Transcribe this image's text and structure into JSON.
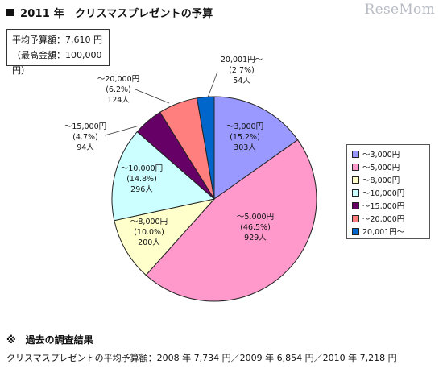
{
  "header": {
    "title": "2011 年　クリスマスプレゼントの予算",
    "logo_text": "ReseMom"
  },
  "summary": {
    "average": "平均予算額：7,610 円",
    "max": "（最高金額：100,000 円）"
  },
  "chart_data": {
    "type": "pie",
    "title": "",
    "start_angle_deg": 0,
    "direction": "clockwise",
    "slices": [
      {
        "legend": "～3,000円",
        "label": "～3,000円",
        "percent_label": "(15.2%)",
        "count_label": "303人",
        "percent": 15.2,
        "count": 303,
        "color": "#9999ff"
      },
      {
        "legend": "～5,000円",
        "label": "～5,000円",
        "percent_label": "(46.5%)",
        "count_label": "929人",
        "percent": 46.5,
        "count": 929,
        "color": "#ff99cc"
      },
      {
        "legend": "～8,000円",
        "label": "～8,000円",
        "percent_label": "(10.0%)",
        "count_label": "200人",
        "percent": 10.0,
        "count": 200,
        "color": "#ffffcc"
      },
      {
        "legend": "～10,000円",
        "label": "～10,000円",
        "percent_label": "(14.8%)",
        "count_label": "296人",
        "percent": 14.8,
        "count": 296,
        "color": "#ccffff"
      },
      {
        "legend": "～15,000円",
        "label": "～15,000円",
        "percent_label": "(4.7%)",
        "count_label": "94人",
        "percent": 4.7,
        "count": 94,
        "color": "#660066"
      },
      {
        "legend": "～20,000円",
        "label": "～20,000円",
        "percent_label": "(6.2%)",
        "count_label": "124人",
        "percent": 6.2,
        "count": 124,
        "color": "#ff7f7f"
      },
      {
        "legend": "20,001円～",
        "label": "20,001円～",
        "percent_label": "(2.7%)",
        "count_label": "54人",
        "percent": 2.7,
        "count": 54,
        "color": "#0066cc"
      }
    ],
    "legend_position": "right"
  },
  "footer": {
    "heading": "※　過去の調査結果",
    "history": "クリスマスプレゼントの平均予算額：2008 年 7,734 円／2009 年 6,854 円／2010 年 7,218 円"
  }
}
